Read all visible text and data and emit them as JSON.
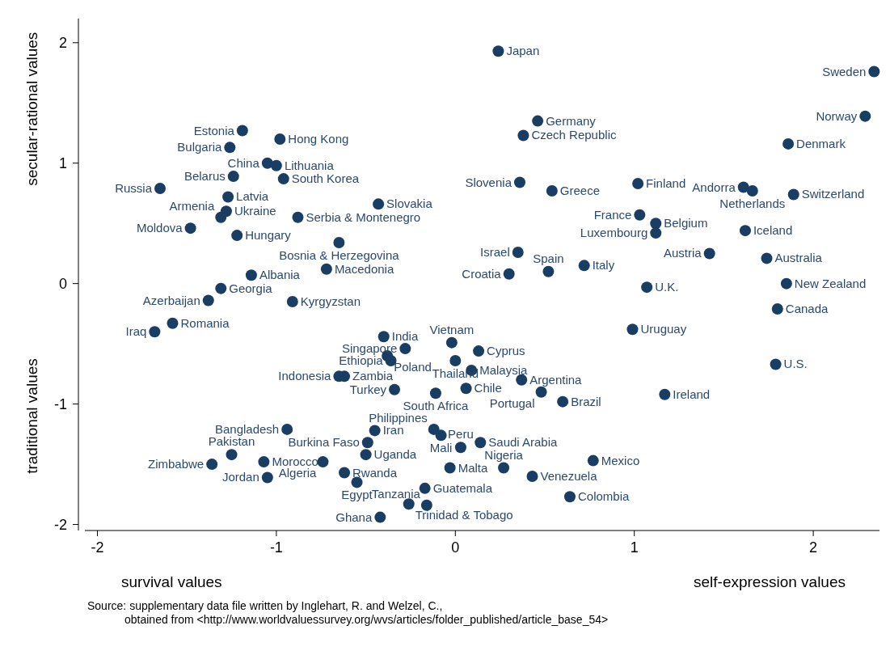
{
  "chart_data": {
    "type": "scatter",
    "marker": "circle",
    "xlim": [
      -2.07,
      2.37
    ],
    "ylim": [
      -2.05,
      2.2
    ],
    "xticks": [
      -2,
      -1,
      0,
      1,
      2
    ],
    "yticks": [
      -2,
      -1,
      0,
      1,
      2
    ],
    "series": [
      {
        "color": "#1a3d63",
        "x": [
          0.24,
          2.34,
          2.29,
          1.86,
          1.66,
          1.61,
          1.89,
          1.62,
          1.74,
          1.42,
          1.85,
          1.8,
          1.79,
          1.17,
          0.99,
          1.07,
          1.02,
          1.03,
          1.12,
          1.12,
          0.72,
          0.52,
          0.3,
          0.35,
          0.54,
          0.36,
          0.46,
          0.38,
          -1.19,
          -1.26,
          -0.98,
          -1.05,
          -1.0,
          -1.24,
          -0.96,
          -1.65,
          -1.27,
          -1.28,
          -1.31,
          -0.88,
          -0.43,
          -1.48,
          -1.22,
          -0.65,
          -0.72,
          -1.14,
          -1.31,
          -1.38,
          -0.91,
          -1.58,
          -1.68,
          -0.4,
          -0.02,
          -0.28,
          0.13,
          -0.38,
          -0.36,
          0.0,
          0.09,
          -0.65,
          -0.62,
          0.37,
          -0.34,
          0.06,
          0.48,
          0.6,
          -0.11,
          -0.12,
          -0.08,
          -0.94,
          -0.45,
          -0.49,
          0.03,
          0.14,
          -0.5,
          -1.25,
          -1.36,
          -1.07,
          -0.74,
          -0.62,
          -1.05,
          -0.55,
          -0.03,
          0.27,
          0.77,
          0.43,
          -0.17,
          0.64,
          -0.26,
          -0.16,
          -0.42
        ],
        "values": [
          1.93,
          1.76,
          1.39,
          1.16,
          0.77,
          0.8,
          0.74,
          0.44,
          0.21,
          0.25,
          0.0,
          -0.21,
          -0.67,
          -0.92,
          -0.38,
          -0.03,
          0.83,
          0.57,
          0.5,
          0.42,
          0.15,
          0.1,
          0.08,
          0.26,
          0.77,
          0.84,
          1.35,
          1.23,
          1.27,
          1.13,
          1.2,
          1.0,
          0.98,
          0.89,
          0.87,
          0.79,
          0.72,
          0.6,
          0.55,
          0.55,
          0.66,
          0.46,
          0.4,
          0.34,
          0.12,
          0.07,
          -0.04,
          -0.14,
          -0.15,
          -0.33,
          -0.4,
          -0.44,
          -0.49,
          -0.54,
          -0.56,
          -0.6,
          -0.64,
          -0.64,
          -0.72,
          -0.77,
          -0.77,
          -0.8,
          -0.88,
          -0.87,
          -0.9,
          -0.98,
          -0.91,
          -1.21,
          -1.26,
          -1.21,
          -1.22,
          -1.32,
          -1.36,
          -1.32,
          -1.42,
          -1.42,
          -1.5,
          -1.48,
          -1.48,
          -1.57,
          -1.61,
          -1.65,
          -1.53,
          -1.53,
          -1.47,
          -1.6,
          -1.7,
          -1.77,
          -1.83,
          -1.84,
          -1.94
        ]
      }
    ],
    "annotations": [
      "survival values",
      "self-expression values",
      "secular-rational values",
      "traditional values",
      "Source: supplementary data file written by Inglehart, R. and Welzel, C.,",
      "obtained from <http://www.worldvaluessurvey.org/wvs/articles/folder_published/article_base_54>",
      {
        "text": "Japan",
        "x": 0.24,
        "y": 1.93
      },
      {
        "text": "Sweden",
        "x": 2.34,
        "y": 1.76
      },
      {
        "text": "Norway",
        "x": 2.29,
        "y": 1.39
      },
      {
        "text": "Denmark",
        "x": 1.86,
        "y": 1.16
      },
      {
        "text": "Netherlands",
        "x": 1.66,
        "y": 0.77
      },
      {
        "text": "Andorra",
        "x": 1.61,
        "y": 0.8
      },
      {
        "text": "Switzerland",
        "x": 1.89,
        "y": 0.74
      },
      {
        "text": "Iceland",
        "x": 1.62,
        "y": 0.44
      },
      {
        "text": "Australia",
        "x": 1.74,
        "y": 0.21
      },
      {
        "text": "Austria",
        "x": 1.42,
        "y": 0.25
      },
      {
        "text": "New Zealand",
        "x": 1.85,
        "y": 0.0
      },
      {
        "text": "Canada",
        "x": 1.8,
        "y": -0.21
      },
      {
        "text": "U.S.",
        "x": 1.79,
        "y": -0.67
      },
      {
        "text": "Ireland",
        "x": 1.17,
        "y": -0.92
      },
      {
        "text": "Uruguay",
        "x": 0.99,
        "y": -0.38
      },
      {
        "text": "U.K.",
        "x": 1.07,
        "y": -0.03
      },
      {
        "text": "Finland",
        "x": 1.02,
        "y": 0.83
      },
      {
        "text": "France",
        "x": 1.03,
        "y": 0.57
      },
      {
        "text": "Belgium",
        "x": 1.12,
        "y": 0.5
      },
      {
        "text": "Luxembourg",
        "x": 1.12,
        "y": 0.42
      },
      {
        "text": "Italy",
        "x": 0.72,
        "y": 0.15
      },
      {
        "text": "Spain",
        "x": 0.52,
        "y": 0.1
      },
      {
        "text": "Croatia",
        "x": 0.3,
        "y": 0.08
      },
      {
        "text": "Israel",
        "x": 0.35,
        "y": 0.26
      },
      {
        "text": "Greece",
        "x": 0.54,
        "y": 0.77
      },
      {
        "text": "Slovenia",
        "x": 0.36,
        "y": 0.84
      },
      {
        "text": "Germany",
        "x": 0.46,
        "y": 1.35
      },
      {
        "text": "Czech Republic",
        "x": 0.38,
        "y": 1.23
      },
      {
        "text": "Estonia",
        "x": -1.19,
        "y": 1.27
      },
      {
        "text": "Bulgaria",
        "x": -1.26,
        "y": 1.13
      },
      {
        "text": "Hong Kong",
        "x": -0.98,
        "y": 1.2
      },
      {
        "text": "China",
        "x": -1.05,
        "y": 1.0
      },
      {
        "text": "Lithuania",
        "x": -1.0,
        "y": 0.98
      },
      {
        "text": "Belarus",
        "x": -1.24,
        "y": 0.89
      },
      {
        "text": "South Korea",
        "x": -0.96,
        "y": 0.87
      },
      {
        "text": "Russia",
        "x": -1.65,
        "y": 0.79
      },
      {
        "text": "Latvia",
        "x": -1.27,
        "y": 0.72
      },
      {
        "text": "Ukraine",
        "x": -1.28,
        "y": 0.6
      },
      {
        "text": "Armenia",
        "x": -1.31,
        "y": 0.55
      },
      {
        "text": "Serbia & Montenegro",
        "x": -0.88,
        "y": 0.55
      },
      {
        "text": "Slovakia",
        "x": -0.43,
        "y": 0.66
      },
      {
        "text": "Moldova",
        "x": -1.48,
        "y": 0.46
      },
      {
        "text": "Hungary",
        "x": -1.22,
        "y": 0.4
      },
      {
        "text": "Bosnia & Herzegovina",
        "x": -0.65,
        "y": 0.34
      },
      {
        "text": "Macedonia",
        "x": -0.72,
        "y": 0.12
      },
      {
        "text": "Albania",
        "x": -1.14,
        "y": 0.07
      },
      {
        "text": "Georgia",
        "x": -1.31,
        "y": -0.04
      },
      {
        "text": "Azerbaijan",
        "x": -1.38,
        "y": -0.14
      },
      {
        "text": "Kyrgyzstan",
        "x": -0.91,
        "y": -0.15
      },
      {
        "text": "Romania",
        "x": -1.58,
        "y": -0.33
      },
      {
        "text": "Iraq",
        "x": -1.68,
        "y": -0.4
      },
      {
        "text": "India",
        "x": -0.4,
        "y": -0.44
      },
      {
        "text": "Vietnam",
        "x": -0.02,
        "y": -0.49
      },
      {
        "text": "Singapore",
        "x": -0.28,
        "y": -0.54
      },
      {
        "text": "Cyprus",
        "x": 0.13,
        "y": -0.56
      },
      {
        "text": "Poland",
        "x": -0.38,
        "y": -0.6
      },
      {
        "text": "Ethiopia",
        "x": -0.36,
        "y": -0.64
      },
      {
        "text": "Thailand",
        "x": 0.0,
        "y": -0.64
      },
      {
        "text": "Malaysia",
        "x": 0.09,
        "y": -0.72
      },
      {
        "text": "Indonesia",
        "x": -0.65,
        "y": -0.77
      },
      {
        "text": "Zambia",
        "x": -0.62,
        "y": -0.77
      },
      {
        "text": "Argentina",
        "x": 0.37,
        "y": -0.8
      },
      {
        "text": "Turkey",
        "x": -0.34,
        "y": -0.88
      },
      {
        "text": "Chile",
        "x": 0.06,
        "y": -0.87
      },
      {
        "text": "Portugal",
        "x": 0.48,
        "y": -0.9
      },
      {
        "text": "Brazil",
        "x": 0.6,
        "y": -0.98
      },
      {
        "text": "South Africa",
        "x": -0.11,
        "y": -0.91
      },
      {
        "text": "Philippines",
        "x": -0.12,
        "y": -1.21
      },
      {
        "text": "Mali",
        "x": -0.08,
        "y": -1.26
      },
      {
        "text": "Bangladesh",
        "x": -0.94,
        "y": -1.21
      },
      {
        "text": "Iran",
        "x": -0.45,
        "y": -1.22
      },
      {
        "text": "Burkina Faso",
        "x": -0.49,
        "y": -1.32
      },
      {
        "text": "Peru",
        "x": 0.03,
        "y": -1.36
      },
      {
        "text": "Saudi Arabia",
        "x": 0.14,
        "y": -1.32
      },
      {
        "text": "Uganda",
        "x": -0.5,
        "y": -1.42
      },
      {
        "text": "Pakistan",
        "x": -1.25,
        "y": -1.42
      },
      {
        "text": "Zimbabwe",
        "x": -1.36,
        "y": -1.5
      },
      {
        "text": "Morocco",
        "x": -1.07,
        "y": -1.48
      },
      {
        "text": "Algeria",
        "x": -0.74,
        "y": -1.48
      },
      {
        "text": "Rwanda",
        "x": -0.62,
        "y": -1.57
      },
      {
        "text": "Jordan",
        "x": -1.05,
        "y": -1.61
      },
      {
        "text": "Egypt",
        "x": -0.55,
        "y": -1.65
      },
      {
        "text": "Malta",
        "x": -0.03,
        "y": -1.53
      },
      {
        "text": "Nigeria",
        "x": 0.27,
        "y": -1.53
      },
      {
        "text": "Mexico",
        "x": 0.77,
        "y": -1.47
      },
      {
        "text": "Venezuela",
        "x": 0.43,
        "y": -1.6
      },
      {
        "text": "Guatemala",
        "x": -0.17,
        "y": -1.7
      },
      {
        "text": "Colombia",
        "x": 0.64,
        "y": -1.77
      },
      {
        "text": "Trinidad & Tobago",
        "x": -0.26,
        "y": -1.83
      },
      {
        "text": "Tanzania",
        "x": -0.16,
        "y": -1.84
      },
      {
        "text": "Ghana",
        "x": -0.42,
        "y": -1.94
      }
    ]
  }
}
